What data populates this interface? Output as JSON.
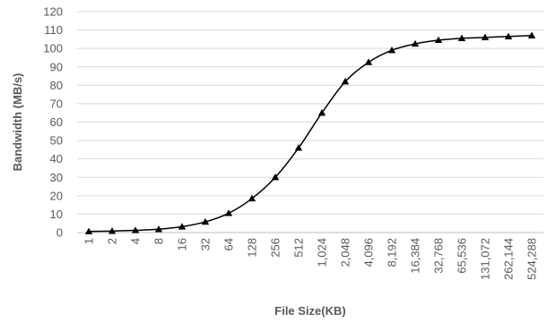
{
  "chart_data": {
    "type": "line",
    "title": "",
    "xlabel": "File Size(KB)",
    "ylabel": "Bandwidth (MB/s)",
    "x_scale": "log2",
    "ylim": [
      0,
      120
    ],
    "y_ticks": [
      0,
      10,
      20,
      30,
      40,
      50,
      60,
      70,
      80,
      90,
      100,
      110,
      120
    ],
    "grid": "horizontal",
    "legend": "none",
    "marker": "triangle",
    "line_color": "#000000",
    "categories": [
      "1",
      "2",
      "4",
      "8",
      "16",
      "32",
      "64",
      "128",
      "256",
      "512",
      "1,024",
      "2,048",
      "4,096",
      "8,192",
      "16,384",
      "32,768",
      "65,536",
      "131,072",
      "262,144",
      "524,288"
    ],
    "values": [
      0.6,
      0.8,
      1.2,
      1.8,
      3.2,
      5.8,
      10.5,
      18.5,
      30,
      46,
      65,
      82,
      92.5,
      99,
      102.5,
      104.5,
      105.5,
      106,
      106.5,
      107
    ]
  }
}
